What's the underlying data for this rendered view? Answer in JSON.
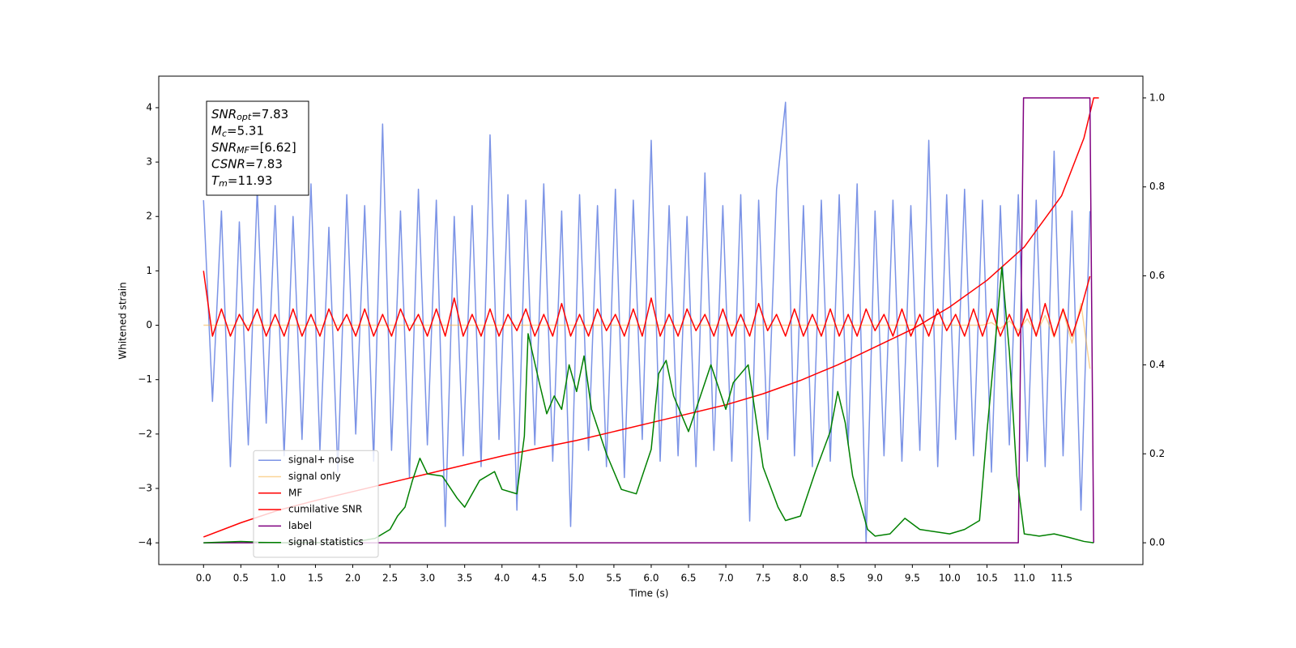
{
  "chart_data": {
    "type": "line",
    "xlabel": "Time (s)",
    "ylabel": "Whitened strain",
    "xlim": [
      -0.6,
      12.59
    ],
    "ylim": [
      -4.4,
      4.58
    ],
    "y2lim": [
      -0.049,
      1.049
    ],
    "xticks": [
      {
        "value": 0,
        "label": "0.0"
      },
      0.5,
      {
        "value": 1,
        "label": "1.0"
      },
      1.5,
      {
        "value": 2,
        "label": "2.0"
      },
      2.5,
      {
        "value": 3,
        "label": "3.0"
      },
      3.5,
      {
        "value": 4,
        "label": "4.0"
      },
      4.5,
      {
        "value": 5,
        "label": "5.0"
      },
      5.5,
      {
        "value": 6,
        "label": "6.0"
      },
      6.5,
      {
        "value": 7,
        "label": "7.0"
      },
      7.5,
      {
        "value": 8,
        "label": "8.0"
      },
      8.5,
      {
        "value": 9,
        "label": "9.0"
      },
      9.5,
      {
        "value": 10,
        "label": "10.0"
      },
      10.5,
      {
        "value": 11,
        "label": "11.0"
      },
      11.5
    ],
    "yticks": [
      {
        "value": -4,
        "label": "−4"
      },
      {
        "value": -3,
        "label": "−3"
      },
      {
        "value": -2,
        "label": "−2"
      },
      {
        "value": -1,
        "label": "−1"
      },
      0,
      1,
      2,
      3,
      4
    ],
    "y2ticks": [
      {
        "value": 0,
        "label": "0.0"
      },
      0.2,
      0.4,
      0.6,
      0.8,
      {
        "value": 1,
        "label": "1.0"
      }
    ],
    "legend": "lower left",
    "textbox": [
      {
        "symbol": "SNR",
        "sub": "opt",
        "text": "=7.83"
      },
      {
        "symbol": "M",
        "sub": "c",
        "text": "=5.31"
      },
      {
        "symbol": "SNR",
        "sub": "MF",
        "text": "=[6.62]"
      },
      {
        "symbol": "CSNR",
        "sub": null,
        "text": "=7.83"
      },
      {
        "symbol": "T",
        "sub": "m",
        "text": "=11.93"
      }
    ],
    "x": [
      0,
      0.12,
      0.24,
      0.36,
      0.48,
      0.6,
      0.72,
      0.84,
      0.96,
      1.08,
      1.2,
      1.32,
      1.44,
      1.56,
      1.68,
      1.8,
      1.92,
      2.04,
      2.16,
      2.28,
      2.4,
      2.52,
      2.64,
      2.76,
      2.88,
      3,
      3.12,
      3.24,
      3.36,
      3.48,
      3.6,
      3.72,
      3.84,
      3.96,
      4.08,
      4.2,
      4.32,
      4.44,
      4.56,
      4.68,
      4.8,
      4.92,
      5.04,
      5.16,
      5.28,
      5.4,
      5.52,
      5.64,
      5.76,
      5.88,
      6,
      6.12,
      6.24,
      6.36,
      6.48,
      6.6,
      6.72,
      6.84,
      6.96,
      7.08,
      7.2,
      7.32,
      7.44,
      7.56,
      7.68,
      7.8,
      7.92,
      8.04,
      8.16,
      8.28,
      8.4,
      8.52,
      8.64,
      8.76,
      8.88,
      9,
      9.12,
      9.24,
      9.36,
      9.48,
      9.6,
      9.72,
      9.84,
      9.96,
      10.08,
      10.2,
      10.32,
      10.44,
      10.56,
      10.68,
      10.8,
      10.92,
      11.04,
      11.16,
      11.28,
      11.4,
      11.52,
      11.64,
      11.76,
      11.88
    ],
    "series": [
      {
        "name": "signal+ noise",
        "color": "#7b93e6",
        "values": [
          2.3,
          -1.4,
          2.1,
          -2.6,
          1.9,
          -2.2,
          2.5,
          -1.8,
          2.2,
          -2.4,
          2.0,
          -2.1,
          2.6,
          -2.3,
          1.8,
          -2.7,
          2.4,
          -2.0,
          2.2,
          -2.5,
          3.7,
          -2.3,
          2.1,
          -2.8,
          2.5,
          -2.2,
          2.3,
          -3.7,
          2.0,
          -2.4,
          2.2,
          -2.6,
          3.5,
          -2.1,
          2.4,
          -3.4,
          2.3,
          -2.2,
          2.6,
          -2.5,
          2.1,
          -3.7,
          2.4,
          -2.3,
          2.2,
          -2.6,
          2.5,
          -2.8,
          2.3,
          -2.1,
          3.4,
          -2.5,
          2.2,
          -2.4,
          2.0,
          -2.6,
          2.8,
          -2.3,
          2.2,
          -2.5,
          2.4,
          -3.6,
          2.3,
          -2.1,
          2.5,
          4.1,
          -2.4,
          2.2,
          -2.6,
          2.3,
          -2.5,
          2.4,
          -2.2,
          2.6,
          -4.0,
          2.1,
          -2.4,
          2.3,
          -2.5,
          2.2,
          -2.3,
          3.4,
          -2.6,
          2.4,
          -2.1,
          2.5,
          -2.4,
          2.3,
          -2.7,
          2.2,
          -2.2,
          2.4,
          -2.5,
          2.3,
          -2.6,
          3.2,
          -2.4,
          2.1,
          -3.4,
          2.1
        ]
      },
      {
        "name": "signal only",
        "color": "#f5b342",
        "values": [
          0,
          0,
          0,
          0,
          0,
          0,
          0,
          0,
          0,
          0,
          0,
          0,
          0,
          0,
          0,
          0,
          0,
          0,
          0,
          0,
          0,
          0,
          0,
          0,
          0,
          0,
          0,
          0,
          0,
          0,
          0,
          0,
          0,
          0,
          0,
          0,
          0,
          0,
          0,
          0,
          0,
          0,
          0,
          0,
          0,
          0,
          0,
          0,
          0,
          0,
          0,
          0,
          0,
          0,
          0,
          0,
          0,
          0,
          0,
          0,
          0,
          0,
          0,
          0,
          0,
          0,
          0,
          0,
          0,
          0,
          0,
          0,
          0,
          0,
          0,
          0,
          0,
          0,
          0,
          0,
          0,
          0,
          0,
          0,
          0,
          0,
          0,
          0,
          0.05,
          -0.06,
          0.08,
          -0.1,
          0.12,
          -0.15,
          0.18,
          -0.22,
          0.27,
          -0.33,
          0.4,
          -0.8
        ]
      },
      {
        "name": "MF",
        "color": "#ff0000",
        "values": [
          1.0,
          -0.2,
          0.3,
          -0.2,
          0.2,
          -0.1,
          0.3,
          -0.2,
          0.2,
          -0.2,
          0.3,
          -0.2,
          0.2,
          -0.2,
          0.3,
          -0.1,
          0.2,
          -0.2,
          0.3,
          -0.2,
          0.2,
          -0.2,
          0.3,
          -0.1,
          0.2,
          -0.2,
          0.3,
          -0.2,
          0.5,
          -0.2,
          0.2,
          -0.2,
          0.3,
          -0.2,
          0.2,
          -0.1,
          0.3,
          -0.2,
          0.2,
          -0.2,
          0.4,
          -0.2,
          0.2,
          -0.2,
          0.3,
          -0.1,
          0.2,
          -0.2,
          0.3,
          -0.2,
          0.5,
          -0.2,
          0.2,
          -0.2,
          0.3,
          -0.1,
          0.2,
          -0.2,
          0.3,
          -0.2,
          0.2,
          -0.2,
          0.4,
          -0.1,
          0.2,
          -0.2,
          0.3,
          -0.2,
          0.2,
          -0.2,
          0.3,
          -0.2,
          0.2,
          -0.2,
          0.3,
          -0.1,
          0.2,
          -0.2,
          0.3,
          -0.2,
          0.2,
          -0.2,
          0.3,
          -0.1,
          0.2,
          -0.2,
          0.3,
          -0.2,
          0.3,
          -0.2,
          0.2,
          -0.2,
          0.3,
          -0.2,
          0.4,
          -0.2,
          0.3,
          -0.2,
          0.3,
          0.9
        ]
      },
      {
        "name": "cumilative SNR",
        "color": "#ff0000",
        "axis": "y2",
        "x": [
          0,
          0.5,
          1,
          1.5,
          2,
          2.5,
          3,
          3.5,
          4,
          4.5,
          5,
          5.5,
          6,
          6.5,
          7,
          7.5,
          8,
          8.5,
          9,
          9.5,
          10,
          10.5,
          11,
          11.5,
          11.8,
          11.93,
          12.0
        ],
        "values": [
          0.013,
          0.045,
          0.073,
          0.095,
          0.115,
          0.135,
          0.155,
          0.175,
          0.195,
          0.213,
          0.23,
          0.25,
          0.27,
          0.29,
          0.31,
          0.335,
          0.365,
          0.4,
          0.44,
          0.48,
          0.53,
          0.59,
          0.665,
          0.78,
          0.91,
          1.0,
          1.0
        ]
      },
      {
        "name": "label",
        "color": "#800080",
        "axis": "y2",
        "x": [
          0,
          10.92,
          10.99,
          11.88,
          11.93
        ],
        "values": [
          0,
          0,
          1,
          1,
          0
        ]
      },
      {
        "name": "signal statistics",
        "color": "#008000",
        "axis": "y2",
        "x": [
          0,
          0.5,
          1,
          2,
          2.3,
          2.5,
          2.6,
          2.7,
          2.8,
          2.9,
          3.0,
          3.2,
          3.4,
          3.5,
          3.7,
          3.9,
          4.0,
          4.2,
          4.3,
          4.35,
          4.5,
          4.6,
          4.7,
          4.8,
          4.9,
          5.0,
          5.1,
          5.2,
          5.4,
          5.6,
          5.8,
          6.0,
          6.1,
          6.2,
          6.3,
          6.5,
          6.6,
          6.8,
          7.0,
          7.1,
          7.3,
          7.5,
          7.7,
          7.8,
          8.0,
          8.2,
          8.4,
          8.5,
          8.6,
          8.7,
          8.9,
          9.0,
          9.2,
          9.4,
          9.6,
          9.8,
          10.0,
          10.2,
          10.4,
          10.5,
          10.6,
          10.7,
          10.8,
          10.9,
          11.0,
          11.2,
          11.4,
          11.6,
          11.8,
          11.93
        ],
        "values": [
          0,
          0.003,
          0,
          0.001,
          0.01,
          0.03,
          0.06,
          0.08,
          0.14,
          0.19,
          0.155,
          0.15,
          0.1,
          0.08,
          0.14,
          0.16,
          0.12,
          0.11,
          0.24,
          0.47,
          0.36,
          0.29,
          0.33,
          0.3,
          0.4,
          0.34,
          0.42,
          0.3,
          0.2,
          0.12,
          0.11,
          0.21,
          0.38,
          0.41,
          0.33,
          0.25,
          0.3,
          0.4,
          0.3,
          0.36,
          0.4,
          0.17,
          0.08,
          0.05,
          0.06,
          0.16,
          0.25,
          0.34,
          0.27,
          0.15,
          0.03,
          0.015,
          0.02,
          0.055,
          0.03,
          0.025,
          0.02,
          0.03,
          0.05,
          0.25,
          0.43,
          0.62,
          0.43,
          0.15,
          0.02,
          0.015,
          0.02,
          0.012,
          0.003,
          0
        ]
      }
    ]
  }
}
